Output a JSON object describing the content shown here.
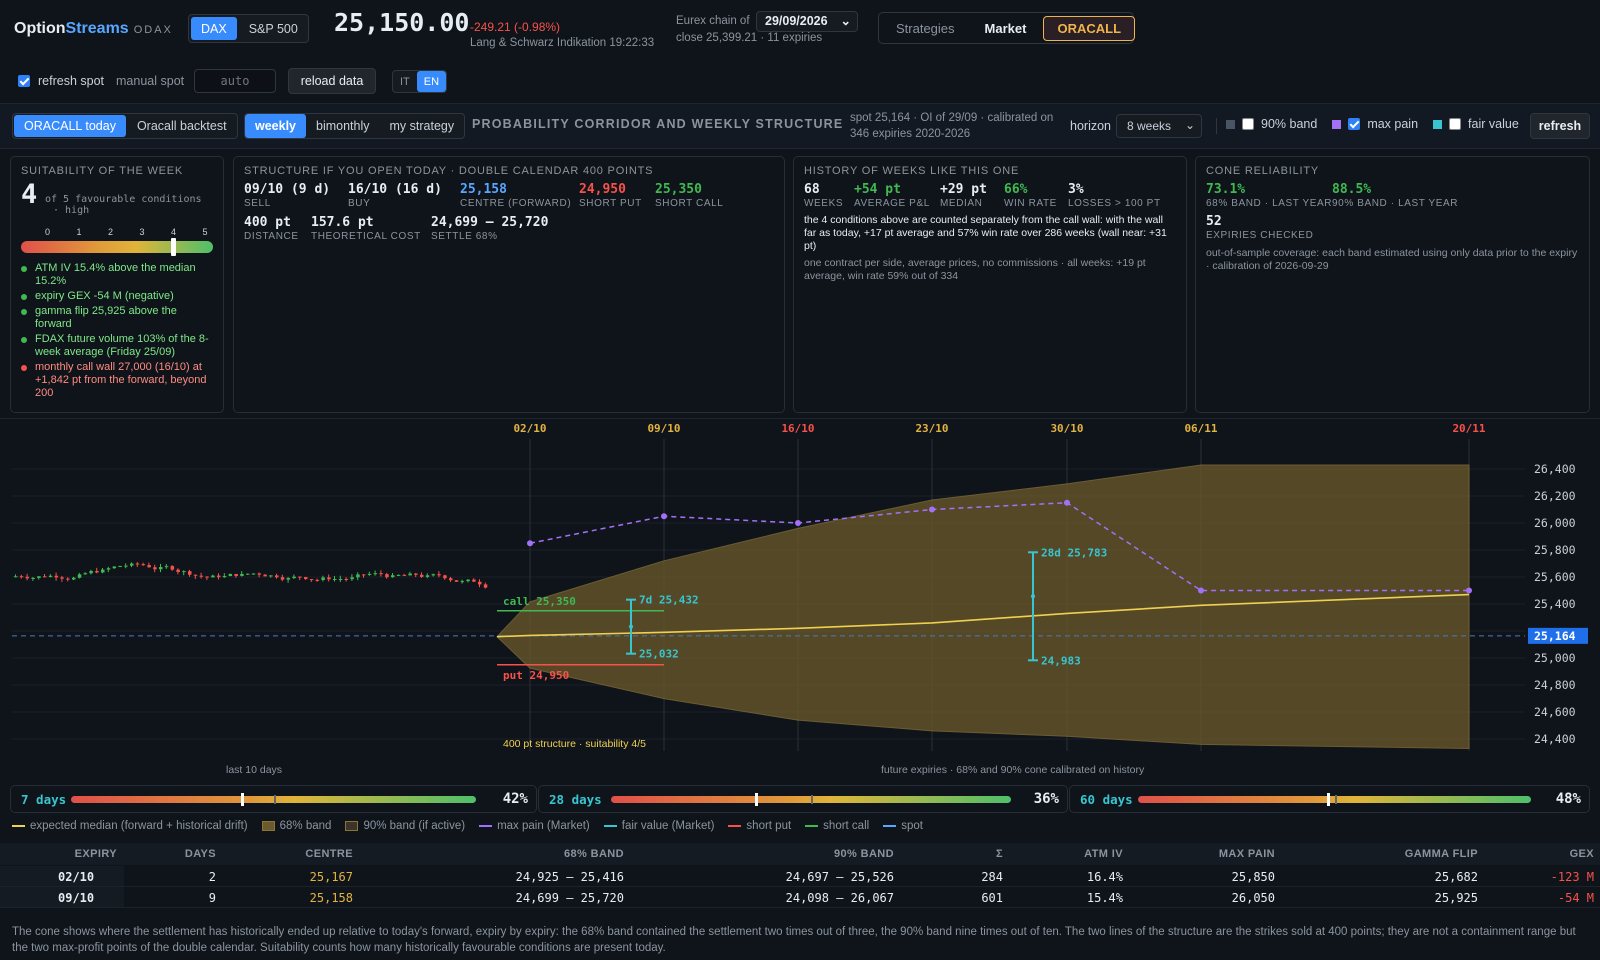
{
  "brand": {
    "a": "Option",
    "b": "Streams",
    "c": "ODAX"
  },
  "index_tabs": [
    "DAX",
    "S&P 500"
  ],
  "quote": {
    "price": "25,150.00",
    "change": "-249.21 (-0.98%)",
    "source": "Lang & Schwarz Indikation 19:22:33"
  },
  "chain": {
    "label": "Eurex chain of",
    "date": "29/09/2026",
    "close": "close 25,399.21 · 11 expiries"
  },
  "nav": [
    "Strategies",
    "Market",
    "ORACALL"
  ],
  "controls": {
    "refresh_spot": "refresh spot",
    "manual_spot": "manual spot",
    "manual_placeholder": "auto",
    "reload": "reload data",
    "lang": [
      "IT",
      "EN"
    ]
  },
  "toolbar": {
    "modes": [
      "ORACALL today",
      "Oracall backtest"
    ],
    "periods": [
      "weekly",
      "bimonthly",
      "my strategy"
    ],
    "title": "PROBABILITY CORRIDOR AND WEEKLY STRUCTURE",
    "meta1": "spot 25,164 · OI of 29/09 · calibrated on",
    "meta2": "346 expiries 2020-2026",
    "horizon_label": "horizon",
    "horizon": "8 weeks",
    "band90": "90% band",
    "maxpain": "max pain",
    "fairvalue": "fair value",
    "refresh": "refresh"
  },
  "suit": {
    "title": "SUITABILITY OF THE WEEK",
    "score": "4",
    "sub1": "of 5 favourable conditions",
    "sub2": "· high",
    "ticks": [
      "0",
      "1",
      "2",
      "3",
      "4",
      "5"
    ],
    "value": 4,
    "conds": [
      {
        "text": "ATM IV 15.4% above the median 15.2%",
        "color": "#3fb950"
      },
      {
        "text": "expiry GEX -54 M (negative)",
        "color": "#3fb950"
      },
      {
        "text": "gamma flip 25,925 above the forward",
        "color": "#3fb950"
      },
      {
        "text": "FDAX future volume 103% of the 8-week average (Friday 25/09)",
        "color": "#3fb950"
      },
      {
        "text": "monthly call wall 27,000 (16/10) at +1,842 pt from the forward, beyond 200",
        "color": "#f85149"
      }
    ]
  },
  "structure": {
    "title": "STRUCTURE IF YOU OPEN TODAY · DOUBLE CALENDAR 400 POINTS",
    "sell_v": "09/10 (9 d)",
    "sell_k": "SELL",
    "buy_v": "16/10 (16 d)",
    "buy_k": "BUY",
    "centre_v": "25,158",
    "centre_k": "CENTRE (FORWARD)",
    "put_v": "24,950",
    "put_k": "SHORT PUT",
    "call_v": "25,350",
    "call_k": "SHORT CALL",
    "dist_v": "400 pt",
    "dist_k": "DISTANCE",
    "cost_v": "157.6 pt",
    "cost_k": "THEORETICAL COST",
    "settle_v": "24,699 — 25,720",
    "settle_k": "SETTLE 68%"
  },
  "history": {
    "title": "HISTORY OF WEEKS LIKE THIS ONE",
    "w_v": "68",
    "w_k": "WEEKS",
    "avg_v": "+54 pt",
    "avg_k": "AVERAGE P&L",
    "med_v": "+29 pt",
    "med_k": "MEDIAN",
    "win_v": "66%",
    "win_k": "WIN RATE",
    "loss_v": "3%",
    "loss_k": "LOSSES > 100 PT",
    "note": "the 4 conditions above are counted separately from the call wall: with the wall far as today, +17 pt average and 57% win rate over 286 weeks (wall near: +31 pt)",
    "note2": "one contract per side, average prices, no commissions · all weeks: +19 pt average, win rate 59% out of 334"
  },
  "cone": {
    "title": "CONE RELIABILITY",
    "a_v": "73.1%",
    "a_k": "68% BAND · LAST YEAR",
    "b_v": "88.5%",
    "b_k": "90% BAND · LAST YEAR",
    "c_v": "52",
    "c_k": "EXPIRIES CHECKED",
    "note": "out-of-sample coverage: each band estimated using only data prior to the expiry · calibration of 2026-09-29"
  },
  "chart_data": {
    "type": "line",
    "expiry_labels": [
      "02/10",
      "09/10",
      "16/10",
      "23/10",
      "30/10",
      "06/11",
      "20/11"
    ],
    "expiry_colors": [
      "#e3b341",
      "#e3b341",
      "#f85149",
      "#e3b341",
      "#e3b341",
      "#e3b341",
      "#f85149"
    ],
    "y_ticks": [
      "26,400",
      "26,200",
      "26,000",
      "25,800",
      "25,600",
      "25,400",
      "25,000",
      "24,800",
      "24,600",
      "24,400"
    ],
    "ylim": [
      24250,
      26500
    ],
    "spot": 25164,
    "spot_label": "25,164",
    "median": [
      25158,
      25167,
      25190,
      25220,
      25260,
      25330,
      25390,
      25470
    ],
    "band68_low": [
      25158,
      24925,
      24699,
      24540,
      24460,
      24420,
      24360,
      24330
    ],
    "band68_high": [
      25158,
      25416,
      25720,
      25960,
      26170,
      26290,
      26430,
      26430
    ],
    "max_pain": [
      25850,
      26050,
      26000,
      26100,
      26150,
      25500,
      25500
    ],
    "call_line": {
      "label": "call 25,350",
      "value": 25350
    },
    "put_line": {
      "label": "put 24,950",
      "value": 24950
    },
    "bars": [
      {
        "label_top": "7d 25,432",
        "label_bot": "25,032",
        "hi": 25432,
        "lo": 25032
      },
      {
        "label_top": "28d 25,783",
        "label_bot": "24,983",
        "hi": 25783,
        "lo": 24983
      }
    ],
    "structure_note": "400 pt structure · suitability 4/5",
    "left_caption": "last 10 days",
    "right_caption": "future expiries · 68% and 90% cone calibrated on history"
  },
  "gauges": [
    {
      "label": "7 days",
      "pct": "42%",
      "value": 0.42
    },
    {
      "label": "28 days",
      "pct": "36%",
      "value": 0.36
    },
    {
      "label": "60 days",
      "pct": "48%",
      "value": 0.48
    }
  ],
  "legend": [
    "expected median (forward + historical drift)",
    "68% band",
    "90% band (if active)",
    "max pain (Market)",
    "fair value (Market)",
    "short put",
    "short call",
    "spot"
  ],
  "table": {
    "headers": [
      "EXPIRY",
      "DAYS",
      "CENTRE",
      "68% BAND",
      "90% BAND",
      "Σ",
      "ATM IV",
      "MAX PAIN",
      "GAMMA FLIP",
      "GEX"
    ],
    "rows": [
      [
        "02/10",
        "2",
        "25,167",
        "24,925 — 25,416",
        "24,697 — 25,526",
        "284",
        "16.4%",
        "25,850",
        "25,682",
        "-123 M"
      ],
      [
        "09/10",
        "9",
        "25,158",
        "24,699 — 25,720",
        "24,098 — 26,067",
        "601",
        "15.4%",
        "26,050",
        "25,925",
        "-54 M"
      ]
    ]
  },
  "footer": "The cone shows where the settlement has historically ended up relative to today's forward, expiry by expiry: the 68% band contained the settlement two times out of three, the 90% band nine times out of ten. The two lines of the structure are the strikes sold at 400 points; they are not a containment range but the two max-profit points of the double calendar. Suitability counts how many historically favourable conditions are present today."
}
